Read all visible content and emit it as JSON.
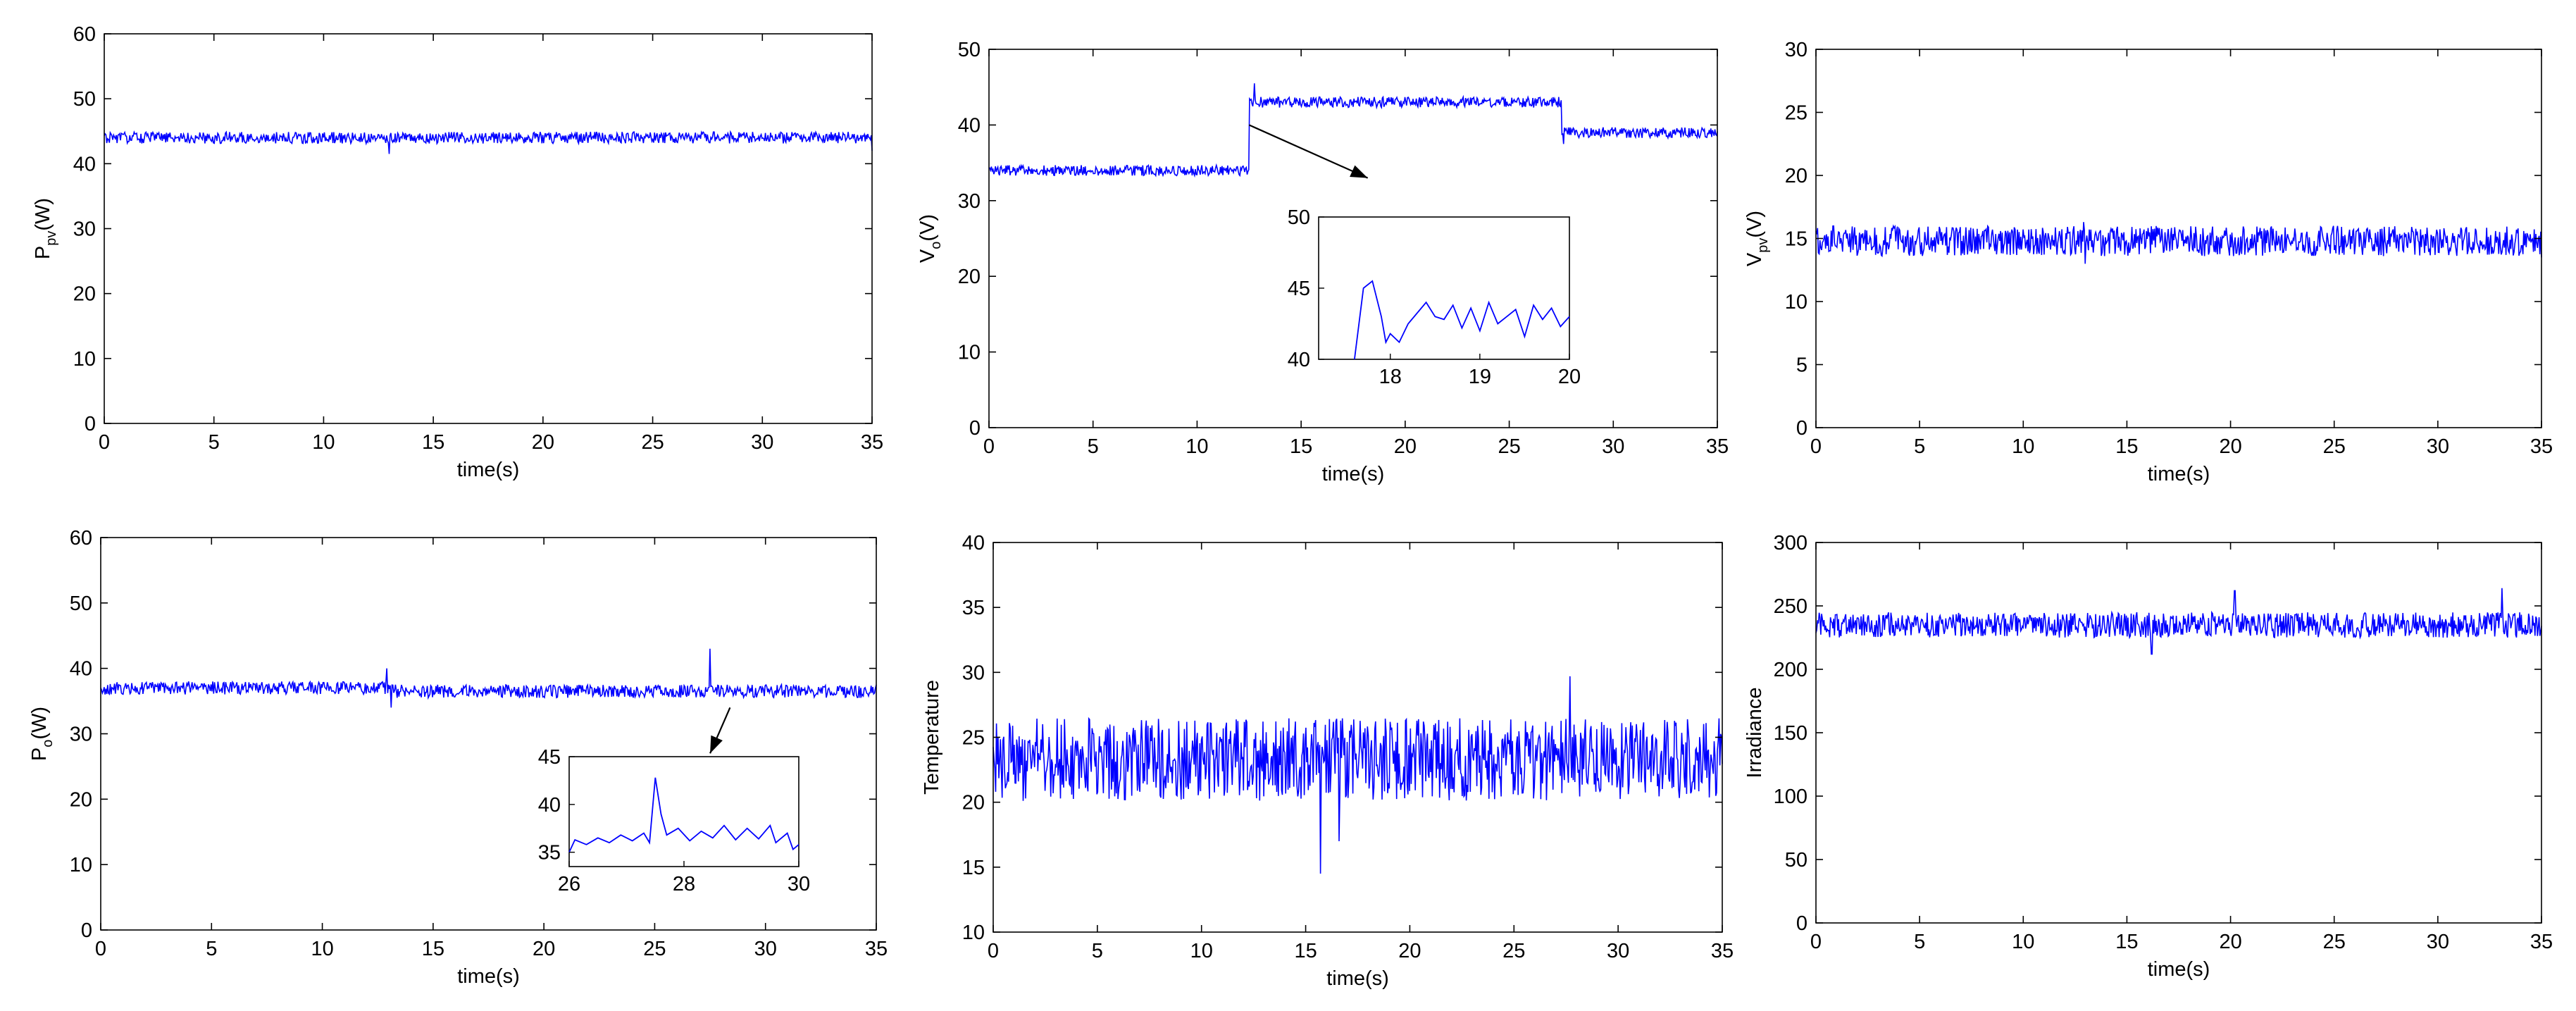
{
  "colors": {
    "line": "#0000ff",
    "axes": "#000000",
    "background": "#ffffff"
  },
  "chart_data": [
    {
      "id": "ppv",
      "type": "line",
      "title": "",
      "xlabel": "time(s)",
      "ylabel_main": "P",
      "ylabel_sub": "pv",
      "ylabel_tail": "(W)",
      "xlim": [
        0,
        35
      ],
      "ylim": [
        0,
        60
      ],
      "xticks": [
        0,
        5,
        10,
        15,
        20,
        25,
        30,
        35
      ],
      "yticks": [
        0,
        10,
        20,
        30,
        40,
        50,
        60
      ],
      "grid": false,
      "series": [
        {
          "noise": 0.9,
          "segments": [
            {
              "x0": 0,
              "x1": 35,
              "level": 44
            }
          ],
          "spikes": [
            {
              "x": 13.0,
              "y": 41.5
            },
            {
              "x": 35,
              "y": 42
            }
          ]
        }
      ]
    },
    {
      "id": "vo",
      "type": "line",
      "title": "",
      "xlabel": "time(s)",
      "ylabel_main": "V",
      "ylabel_sub": "o",
      "ylabel_tail": "(V)",
      "xlim": [
        0,
        35
      ],
      "ylim": [
        0,
        50
      ],
      "xticks": [
        0,
        5,
        10,
        15,
        20,
        25,
        30,
        35
      ],
      "yticks": [
        0,
        10,
        20,
        30,
        40,
        50
      ],
      "grid": false,
      "series": [
        {
          "noise": 0.7,
          "segments": [
            {
              "x0": 0,
              "x1": 12.5,
              "level": 34
            },
            {
              "x0": 12.5,
              "x1": 27.5,
              "level": 43
            },
            {
              "x0": 27.5,
              "x1": 35,
              "level": 39
            }
          ],
          "spikes": [
            {
              "x": 12.75,
              "y": 45.5
            },
            {
              "x": 27.6,
              "y": 37.5
            }
          ]
        }
      ],
      "inset": {
        "xlim": [
          17.2,
          20
        ],
        "ylim": [
          40,
          50
        ],
        "xticks": [
          18,
          19,
          20
        ],
        "yticks": [
          40,
          45,
          50
        ],
        "points": [
          [
            17.6,
            39.8
          ],
          [
            17.7,
            45.0
          ],
          [
            17.8,
            45.5
          ],
          [
            17.9,
            43.0
          ],
          [
            17.95,
            41.2
          ],
          [
            18.0,
            41.8
          ],
          [
            18.1,
            41.2
          ],
          [
            18.2,
            42.5
          ],
          [
            18.4,
            44.0
          ],
          [
            18.5,
            43.0
          ],
          [
            18.6,
            42.8
          ],
          [
            18.7,
            43.8
          ],
          [
            18.8,
            42.2
          ],
          [
            18.9,
            43.6
          ],
          [
            19.0,
            42.0
          ],
          [
            19.1,
            44.0
          ],
          [
            19.2,
            42.5
          ],
          [
            19.3,
            43.0
          ],
          [
            19.4,
            43.5
          ],
          [
            19.5,
            41.6
          ],
          [
            19.6,
            43.8
          ],
          [
            19.7,
            42.8
          ],
          [
            19.8,
            43.6
          ],
          [
            19.9,
            42.3
          ],
          [
            20.0,
            43.0
          ]
        ],
        "arrow_from": [
          12.5,
          40
        ],
        "arrow_to": [
          18.2,
          33
        ]
      }
    },
    {
      "id": "vpv",
      "type": "line",
      "title": "",
      "xlabel": "time(s)",
      "ylabel_main": "V",
      "ylabel_sub": "pv",
      "ylabel_tail": "(V)",
      "xlim": [
        0,
        35
      ],
      "ylim": [
        0,
        30
      ],
      "xticks": [
        0,
        5,
        10,
        15,
        20,
        25,
        30,
        35
      ],
      "yticks": [
        0,
        5,
        10,
        15,
        20,
        25,
        30
      ],
      "grid": false,
      "series": [
        {
          "noise": 1.2,
          "segments": [
            {
              "x0": 0,
              "x1": 35,
              "level": 14.8
            }
          ],
          "spikes": [
            {
              "x": 12.9,
              "y": 16.3
            },
            {
              "x": 13.0,
              "y": 13.0
            },
            {
              "x": 35,
              "y": 13.5
            }
          ]
        }
      ]
    },
    {
      "id": "po",
      "type": "line",
      "title": "",
      "xlabel": "time(s)",
      "ylabel_main": "P",
      "ylabel_sub": "o",
      "ylabel_tail": "(W)",
      "xlim": [
        0,
        35
      ],
      "ylim": [
        0,
        60
      ],
      "xticks": [
        0,
        5,
        10,
        15,
        20,
        25,
        30,
        35
      ],
      "yticks": [
        0,
        10,
        20,
        30,
        40,
        50,
        60
      ],
      "grid": false,
      "series": [
        {
          "noise": 1.0,
          "segments": [
            {
              "x0": 0,
              "x1": 13,
              "level": 37
            },
            {
              "x0": 13,
              "x1": 35,
              "level": 36.5
            }
          ],
          "spikes": [
            {
              "x": 12.9,
              "y": 40
            },
            {
              "x": 13.1,
              "y": 34
            },
            {
              "x": 27.5,
              "y": 43
            }
          ]
        }
      ],
      "inset": {
        "xlim": [
          26,
          30
        ],
        "ylim": [
          33.5,
          45
        ],
        "xticks": [
          26,
          28,
          30
        ],
        "yticks": [
          35,
          40,
          45
        ],
        "points": [
          [
            26.0,
            35.0
          ],
          [
            26.1,
            36.3
          ],
          [
            26.3,
            35.8
          ],
          [
            26.5,
            36.5
          ],
          [
            26.7,
            36.0
          ],
          [
            26.9,
            36.8
          ],
          [
            27.1,
            36.2
          ],
          [
            27.3,
            37.0
          ],
          [
            27.4,
            36.0
          ],
          [
            27.5,
            42.8
          ],
          [
            27.6,
            39.0
          ],
          [
            27.7,
            36.8
          ],
          [
            27.9,
            37.5
          ],
          [
            28.1,
            36.2
          ],
          [
            28.3,
            37.2
          ],
          [
            28.5,
            36.5
          ],
          [
            28.7,
            37.8
          ],
          [
            28.9,
            36.3
          ],
          [
            29.1,
            37.5
          ],
          [
            29.3,
            36.4
          ],
          [
            29.5,
            37.8
          ],
          [
            29.6,
            36.0
          ],
          [
            29.8,
            37.0
          ],
          [
            29.9,
            35.3
          ],
          [
            30.0,
            35.8
          ]
        ],
        "arrow_from": [
          28.4,
          34
        ],
        "arrow_to": [
          27.5,
          27
        ]
      }
    },
    {
      "id": "temp",
      "type": "line",
      "title": "",
      "xlabel": "time(s)",
      "ylabel_main": "Temperature",
      "ylabel_sub": "",
      "ylabel_tail": "",
      "xlim": [
        0,
        35
      ],
      "ylim": [
        10,
        40
      ],
      "xticks": [
        0,
        5,
        10,
        15,
        20,
        25,
        30,
        35
      ],
      "yticks": [
        10,
        15,
        20,
        25,
        30,
        35,
        40
      ],
      "grid": false,
      "series": [
        {
          "noise": 3.2,
          "segments": [
            {
              "x0": 0,
              "x1": 35,
              "level": 23.3
            }
          ],
          "spikes": [
            {
              "x": 15.7,
              "y": 14.5
            },
            {
              "x": 27.7,
              "y": 29.7
            },
            {
              "x": 16.6,
              "y": 17.0
            }
          ]
        }
      ]
    },
    {
      "id": "irr",
      "type": "line",
      "title": "",
      "xlabel": "time(s)",
      "ylabel_main": "Irradiance",
      "ylabel_sub": "",
      "ylabel_tail": "",
      "xlim": [
        0,
        35
      ],
      "ylim": [
        0,
        300
      ],
      "xticks": [
        0,
        5,
        10,
        15,
        20,
        25,
        30,
        35
      ],
      "yticks": [
        0,
        50,
        100,
        150,
        200,
        250,
        300
      ],
      "grid": false,
      "series": [
        {
          "noise": 10,
          "segments": [
            {
              "x0": 0,
              "x1": 35,
              "level": 235
            }
          ],
          "spikes": [
            {
              "x": 20.2,
              "y": 262
            },
            {
              "x": 33.1,
              "y": 264
            },
            {
              "x": 16.2,
              "y": 212
            }
          ]
        }
      ]
    }
  ]
}
